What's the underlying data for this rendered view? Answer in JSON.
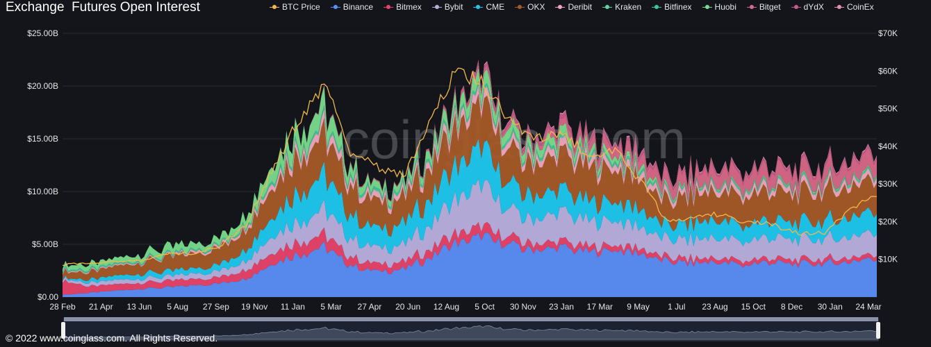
{
  "header": {
    "title": "Exchange  Futures Open Interest"
  },
  "footer": {
    "copyright": "© 2022 www.coinglass.com. All Rights Reserved."
  },
  "watermark": "coinglass.com",
  "colors": {
    "background": "#14151a",
    "grid": "#2a2b31",
    "axis_text": "#e6e6e6"
  },
  "chart_data": {
    "type": "area",
    "title": "Exchange  Futures Open Interest",
    "stacked": true,
    "x_ticks": [
      "28 Feb",
      "21 Apr",
      "13 Jun",
      "5 Aug",
      "27 Sep",
      "19 Nov",
      "11 Jan",
      "5 Mar",
      "27 Apr",
      "20 Jun",
      "12 Aug",
      "5 Oct",
      "30 Nov",
      "23 Jan",
      "17 Mar",
      "9 May",
      "1 Jul",
      "23 Aug",
      "15 Oct",
      "8 Dec",
      "30 Jan",
      "24 Mar"
    ],
    "y_left_ticks": [
      "$0.00",
      "$5.00B",
      "$10.00B",
      "$15.00B",
      "$20.00B",
      "$25.00B"
    ],
    "y_right_ticks": [
      "$10K",
      "$20K",
      "$30K",
      "$40K",
      "$50K",
      "$60K",
      "$70K"
    ],
    "ylim_left": [
      0,
      25
    ],
    "ylim_right": [
      0,
      70000
    ],
    "legend_position": "top",
    "series": [
      {
        "name": "Binance",
        "color": "#5b8ff9",
        "values": [
          0.2,
          0.4,
          0.6,
          0.8,
          0.9,
          1.1,
          1.3,
          1.8,
          3.2,
          4.0,
          4.8,
          2.9,
          2.4,
          2.6,
          3.8,
          5.2,
          5.6,
          4.9,
          4.5,
          4.6,
          4.3,
          4.4,
          4.1,
          3.4,
          3.2,
          3.3,
          3.0,
          3.4,
          3.1,
          3.2,
          3.4,
          3.6
        ]
      },
      {
        "name": "Bitmex",
        "color": "#e8436a",
        "values": [
          1.4,
          0.6,
          0.6,
          0.6,
          0.6,
          0.6,
          0.6,
          0.9,
          1.1,
          1.2,
          1.2,
          0.8,
          0.7,
          0.7,
          0.8,
          0.9,
          0.9,
          0.7,
          0.6,
          0.6,
          0.5,
          0.5,
          0.5,
          0.4,
          0.4,
          0.4,
          0.4,
          0.4,
          0.4,
          0.4,
          0.4,
          0.4
        ]
      },
      {
        "name": "Bybit",
        "color": "#b9b0e0",
        "values": [
          0.2,
          0.3,
          0.4,
          0.4,
          0.4,
          0.5,
          0.6,
          0.9,
          1.6,
          1.9,
          2.4,
          1.7,
          1.5,
          1.6,
          2.3,
          3.3,
          3.8,
          2.5,
          2.3,
          2.7,
          2.4,
          2.3,
          2.0,
          1.7,
          1.8,
          1.9,
          1.8,
          2.0,
          1.9,
          1.9,
          2.0,
          2.1
        ]
      },
      {
        "name": "CME",
        "color": "#1ec8f0",
        "values": [
          0.1,
          0.3,
          0.4,
          0.5,
          0.5,
          0.5,
          0.6,
          1.1,
          1.9,
          2.8,
          3.3,
          2.2,
          1.8,
          2.0,
          2.6,
          3.2,
          3.5,
          2.4,
          2.3,
          2.1,
          1.9,
          1.8,
          1.7,
          1.3,
          1.6,
          1.7,
          1.5,
          1.7,
          1.6,
          1.7,
          1.9,
          2.0
        ]
      },
      {
        "name": "OKX",
        "color": "#a65a28",
        "values": [
          0.6,
          0.7,
          0.9,
          1.1,
          1.3,
          1.4,
          1.6,
          2.0,
          2.9,
          3.4,
          3.7,
          2.7,
          2.5,
          2.4,
          3.0,
          3.6,
          3.9,
          3.1,
          3.0,
          3.3,
          3.2,
          3.0,
          2.9,
          2.2,
          2.6,
          2.7,
          2.7,
          2.8,
          2.7,
          2.8,
          2.9,
          3.0
        ]
      },
      {
        "name": "Deribit",
        "color": "#f0a8c0",
        "values": [
          0.1,
          0.1,
          0.1,
          0.1,
          0.1,
          0.2,
          0.2,
          0.3,
          0.5,
          0.7,
          0.8,
          0.6,
          0.5,
          0.5,
          0.6,
          0.7,
          0.8,
          0.6,
          0.6,
          0.7,
          0.7,
          0.6,
          0.6,
          0.5,
          0.5,
          0.5,
          0.5,
          0.5,
          0.5,
          0.5,
          0.5,
          0.5
        ]
      },
      {
        "name": "Kraken",
        "color": "#5fd6a0",
        "values": [
          0.05,
          0.05,
          0.05,
          0.05,
          0.05,
          0.05,
          0.05,
          0.1,
          0.1,
          0.1,
          0.1,
          0.1,
          0.1,
          0.1,
          0.1,
          0.1,
          0.1,
          0.1,
          0.1,
          0.1,
          0.1,
          0.1,
          0.1,
          0.1,
          0.1,
          0.1,
          0.1,
          0.1,
          0.1,
          0.1,
          0.1,
          0.1
        ]
      },
      {
        "name": "Bitfinex",
        "color": "#3ec8a2",
        "values": [
          0.1,
          0.1,
          0.1,
          0.1,
          0.1,
          0.1,
          0.1,
          0.1,
          0.2,
          0.2,
          0.2,
          0.2,
          0.2,
          0.2,
          0.2,
          0.2,
          0.2,
          0.2,
          0.2,
          0.2,
          0.2,
          0.2,
          0.2,
          0.1,
          0.1,
          0.1,
          0.1,
          0.1,
          0.1,
          0.1,
          0.1,
          0.1
        ]
      },
      {
        "name": "Huobi",
        "color": "#78dc8c",
        "values": [
          0.4,
          0.5,
          0.5,
          0.6,
          0.7,
          0.6,
          0.6,
          1.0,
          1.4,
          1.6,
          1.7,
          0.9,
          0.6,
          0.6,
          0.8,
          1.1,
          1.2,
          0.9,
          0.8,
          0.8,
          0.6,
          0.5,
          0.4,
          0.2,
          0.1,
          0.1,
          0.1,
          0.1,
          0.1,
          0.1,
          0.1,
          0.1
        ]
      },
      {
        "name": "Bitget",
        "color": "#d86888",
        "values": [
          0.0,
          0.0,
          0.0,
          0.0,
          0.0,
          0.0,
          0.0,
          0.0,
          0.0,
          0.0,
          0.1,
          0.1,
          0.1,
          0.1,
          0.1,
          0.2,
          0.3,
          0.3,
          0.4,
          0.6,
          0.8,
          0.9,
          1.0,
          1.1,
          1.2,
          1.3,
          1.3,
          1.4,
          1.3,
          1.3,
          1.5,
          1.6
        ]
      },
      {
        "name": "dYdX",
        "color": "#c85a8a",
        "values": [
          0.0,
          0.0,
          0.0,
          0.0,
          0.0,
          0.0,
          0.0,
          0.0,
          0.0,
          0.0,
          0.0,
          0.0,
          0.0,
          0.0,
          0.1,
          0.2,
          0.3,
          0.3,
          0.3,
          0.4,
          0.3,
          0.3,
          0.3,
          0.2,
          0.2,
          0.2,
          0.2,
          0.2,
          0.2,
          0.2,
          0.2,
          0.2
        ]
      },
      {
        "name": "CoinEx",
        "color": "#e890b0",
        "values": [
          0.0,
          0.0,
          0.0,
          0.0,
          0.0,
          0.0,
          0.0,
          0.0,
          0.0,
          0.0,
          0.0,
          0.0,
          0.0,
          0.0,
          0.0,
          0.0,
          0.1,
          0.1,
          0.1,
          0.1,
          0.1,
          0.1,
          0.1,
          0.1,
          0.1,
          0.1,
          0.1,
          0.1,
          0.1,
          0.1,
          0.1,
          0.1
        ]
      }
    ],
    "btc_price": {
      "name": "BTC Price",
      "color": "#f2b84b",
      "values": [
        8700,
        9100,
        9300,
        9800,
        11300,
        11700,
        13600,
        19200,
        34000,
        47000,
        56000,
        38000,
        34500,
        32000,
        47000,
        60000,
        57000,
        47000,
        42000,
        43000,
        38000,
        39000,
        31000,
        20000,
        21000,
        22000,
        20000,
        19300,
        16800,
        17000,
        23000,
        27500
      ]
    }
  }
}
